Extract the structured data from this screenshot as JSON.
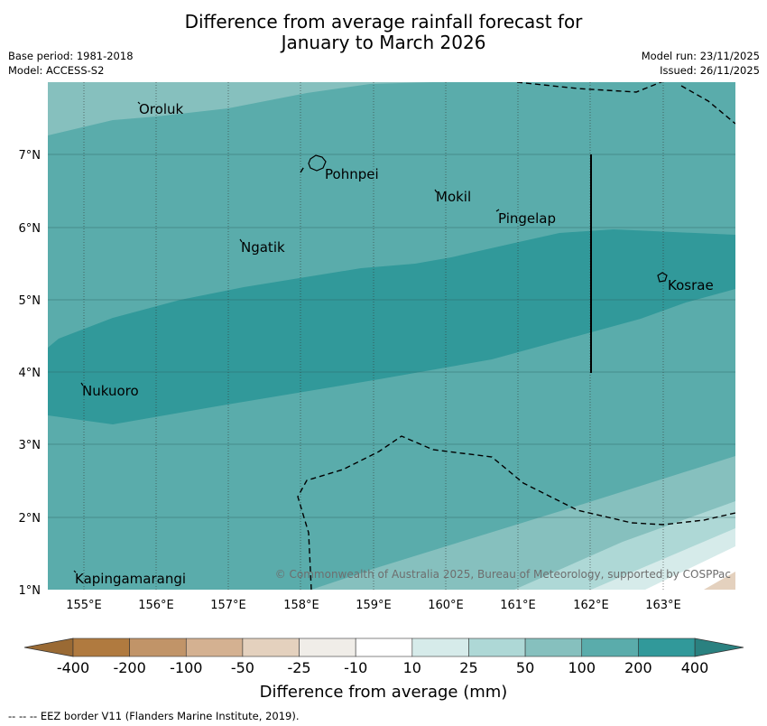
{
  "title": {
    "line1": "Difference from average rainfall forecast for",
    "line2": "January to March 2026"
  },
  "meta": {
    "base_period": "Base period: 1981-2018",
    "model": "Model: ACCESS-S2",
    "model_run": "Model run: 23/11/2025",
    "issued": "Issued: 26/11/2025"
  },
  "map": {
    "lon_range": [
      154.5,
      164
    ],
    "lat_range": [
      1,
      8
    ],
    "lon_ticks": [
      "155°E",
      "156°E",
      "157°E",
      "158°E",
      "159°E",
      "160°E",
      "161°E",
      "162°E",
      "163°E"
    ],
    "lat_ticks": [
      "7°N",
      "6°N",
      "5°N",
      "4°N",
      "3°N",
      "2°N",
      "1°N"
    ],
    "places": [
      "Oroluk",
      "Pohnpei",
      "Mokil",
      "Pingelap",
      "Ngatik",
      "Kosrae",
      "Nukuoro",
      "Kapingamarangi"
    ],
    "copyright": "© Commonwealth of Australia 2025, Bureau of Meteorology, supported by COSPPac"
  },
  "legend": {
    "labels": [
      "-400",
      "-200",
      "-100",
      "-50",
      "-25",
      "-10",
      "10",
      "25",
      "50",
      "100",
      "200",
      "400"
    ],
    "colors": [
      "#b07a3f",
      "#c19468",
      "#d4b191",
      "#e4d1be",
      "#f0ede8",
      "#ffffff",
      "#d6ebea",
      "#aed8d6",
      "#86c0be",
      "#5aacab",
      "#31999a"
    ],
    "under_color": "#9a6a34",
    "over_color": "#2a8180",
    "title": "Difference from average (mm)"
  },
  "footer": "--  --  -- EEZ border V11 (Flanders Marine Institute, 2019)."
}
